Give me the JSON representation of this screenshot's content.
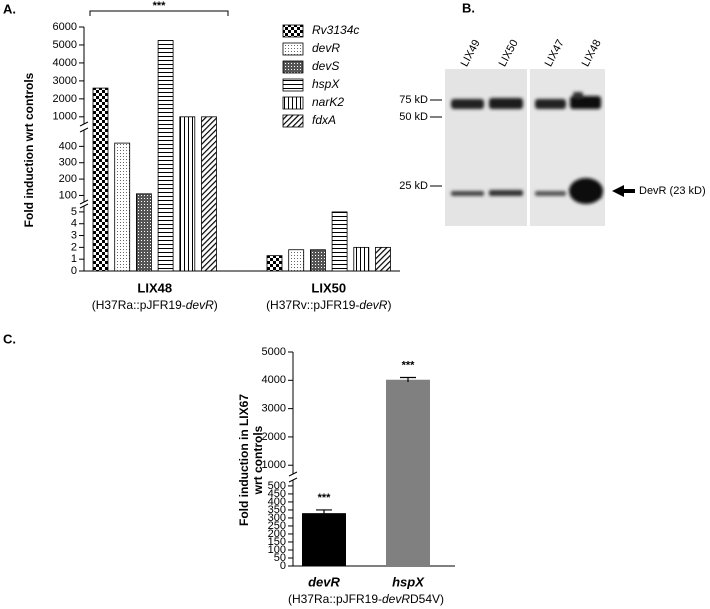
{
  "chart_data": [
    {
      "type": "bar",
      "panel_label": "A.",
      "y_label": "Fold induction wrt controls",
      "significance": "***",
      "categories": [
        "LIX48",
        "LIX50"
      ],
      "category_notes": [
        [
          "(H37Ra::pJFR19-",
          "devR",
          ")"
        ],
        [
          "(H37Rv::pJFR19-",
          "devR",
          ")"
        ]
      ],
      "y_axis": [
        {
          "ylim": [
            0,
            5.5
          ],
          "yticks": [
            0,
            1,
            2,
            3,
            4,
            5
          ]
        },
        {
          "ylim": [
            60,
            500
          ],
          "yticks": [
            100,
            200,
            300,
            400
          ]
        },
        {
          "ylim": [
            600,
            6000
          ],
          "yticks": [
            1000,
            2000,
            3000,
            4000,
            5000,
            6000
          ]
        }
      ],
      "series": [
        {
          "name": "Rv3134c",
          "pattern": "checker",
          "color": "#000000",
          "values": [
            2600,
            1.3
          ]
        },
        {
          "name": "devR",
          "pattern": "dots",
          "color": "#000000",
          "values": [
            420,
            1.8
          ]
        },
        {
          "name": "devS",
          "pattern": "crosshatch",
          "color": "#000000",
          "values": [
            110,
            1.8
          ]
        },
        {
          "name": "hspX",
          "pattern": "horizontal",
          "color": "#000000",
          "values": [
            5250,
            5.0
          ]
        },
        {
          "name": "narK2",
          "pattern": "vertical",
          "color": "#000000",
          "values": [
            1000,
            2.0
          ]
        },
        {
          "name": "fdxA",
          "pattern": "diagonal",
          "color": "#000000",
          "values": [
            1000,
            2.0
          ]
        }
      ]
    },
    {
      "type": "bar",
      "panel_label": "C.",
      "y_label": [
        "Fold induction in LIX67",
        "wrt controls"
      ],
      "categories": [
        "devR",
        "hspX"
      ],
      "category_note": [
        "(H37Ra::pJFR19-",
        "devR",
        "D54V)"
      ],
      "values": [
        330,
        4020
      ],
      "errors": [
        20,
        80
      ],
      "colors": [
        "#000000",
        "#808080"
      ],
      "significance": [
        "***",
        "***"
      ],
      "y_axis": [
        {
          "ylim": [
            0,
            537
          ],
          "yticks": [
            0,
            50,
            100,
            150,
            200,
            250,
            300,
            350,
            400,
            450,
            500
          ]
        },
        {
          "ylim": [
            690,
            5000
          ],
          "yticks": [
            1000,
            2000,
            3000,
            4000,
            5000
          ]
        }
      ]
    }
  ],
  "blot": {
    "panel_label": "B.",
    "lanes": [
      "LIX49",
      "LIX50",
      "LIX47",
      "LIX48"
    ],
    "markers": [
      "75 kD",
      "50 kD",
      "25 kD"
    ],
    "band_label": "DevR (23 kD)"
  }
}
